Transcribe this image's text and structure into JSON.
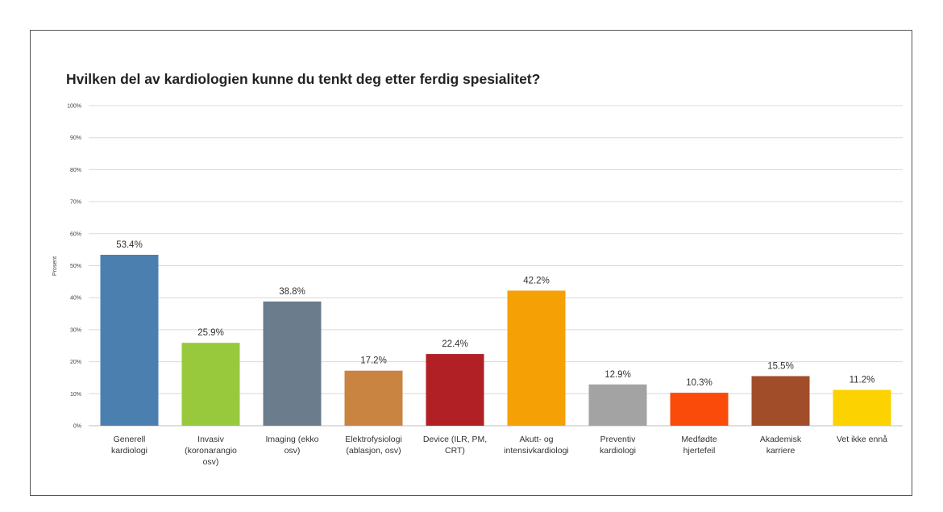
{
  "chart_data": {
    "type": "bar",
    "title": "Hvilken del av kardiologien kunne du tenkt deg etter ferdig spesialitet?",
    "xlabel": "",
    "ylabel": "Prosent",
    "ylim": [
      0,
      100
    ],
    "yticks": [
      "0%",
      "10%",
      "20%",
      "30%",
      "40%",
      "50%",
      "60%",
      "70%",
      "80%",
      "90%",
      "100%"
    ],
    "grid": true,
    "categories": [
      [
        "Generell",
        "kardiologi"
      ],
      [
        "Invasiv",
        "(koronarangio",
        "osv)"
      ],
      [
        "Imaging (ekko",
        "osv)"
      ],
      [
        "Elektrofysiologi",
        "(ablasjon, osv)"
      ],
      [
        "Device (ILR, PM,",
        "CRT)"
      ],
      [
        "Akutt- og",
        "intensivkardiologi"
      ],
      [
        "Preventiv",
        "kardiologi"
      ],
      [
        "Medfødte",
        "hjertefeil"
      ],
      [
        "Akademisk",
        "karriere"
      ],
      [
        "Vet ikke ennå"
      ]
    ],
    "values": [
      53.4,
      25.9,
      38.8,
      17.2,
      22.4,
      42.2,
      12.9,
      10.3,
      15.5,
      11.2
    ],
    "data_labels": [
      "53.4%",
      "25.9%",
      "38.8%",
      "17.2%",
      "22.4%",
      "42.2%",
      "12.9%",
      "10.3%",
      "15.5%",
      "11.2%"
    ],
    "colors": [
      "#4a7fb0",
      "#98c93c",
      "#6b7d8c",
      "#c98441",
      "#b02025",
      "#f5a005",
      "#a3a3a3",
      "#fa4b0a",
      "#a24d2a",
      "#fcd200"
    ]
  }
}
